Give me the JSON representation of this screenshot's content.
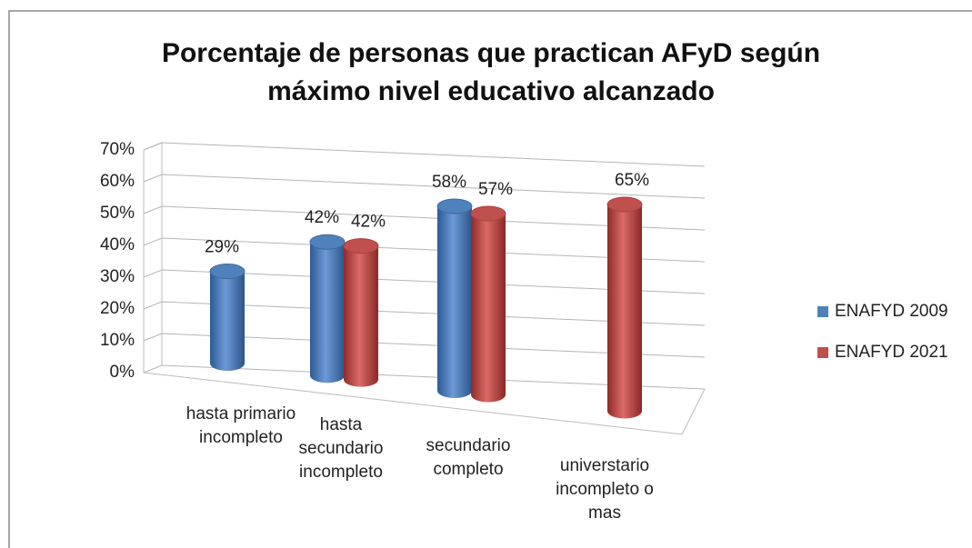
{
  "chart_data": {
    "type": "bar3d",
    "title": "Porcentaje de personas que practican AFyD según máximo nivel educativo alcanzado",
    "categories": [
      "hasta primario incompleto",
      "hasta secundario incompleto",
      "secundario completo",
      "universtario incompleto o mas"
    ],
    "series": [
      {
        "name": "ENAFYD 2009",
        "color": "#4f81bd",
        "values": [
          29,
          42,
          58,
          null
        ],
        "value_labels": [
          "29%",
          "42%",
          "58%",
          null
        ]
      },
      {
        "name": "ENAFYD 2021",
        "color": "#c0504d",
        "values": [
          null,
          42,
          57,
          65
        ],
        "value_labels": [
          null,
          "42%",
          "57%",
          "65%"
        ]
      }
    ],
    "ylim": [
      0,
      70
    ],
    "yticks": [
      {
        "value": 0,
        "label": "0%"
      },
      {
        "value": 10,
        "label": "10%"
      },
      {
        "value": 20,
        "label": "20%"
      },
      {
        "value": 30,
        "label": "30%"
      },
      {
        "value": 40,
        "label": "40%"
      },
      {
        "value": 50,
        "label": "50%"
      },
      {
        "value": 60,
        "label": "60%"
      },
      {
        "value": 70,
        "label": "70%"
      }
    ],
    "grid": true,
    "legend": "right"
  }
}
